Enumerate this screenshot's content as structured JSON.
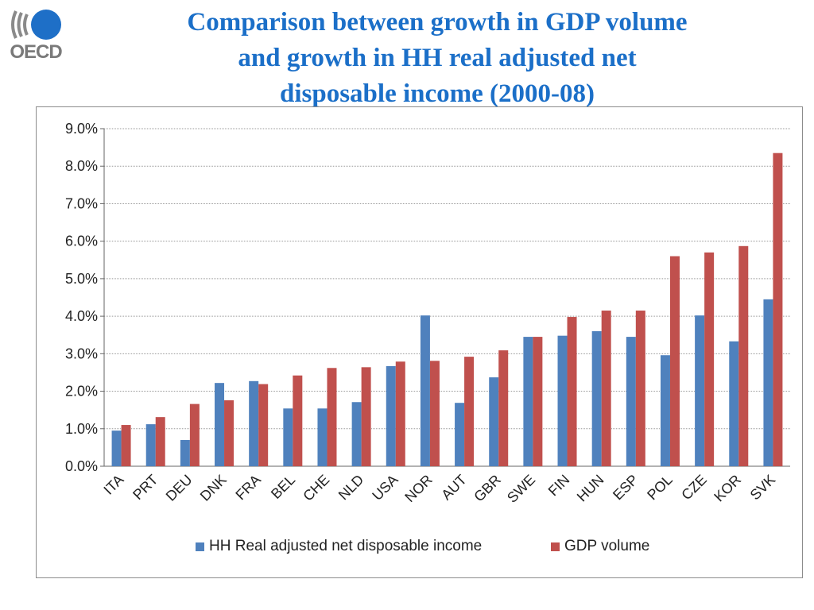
{
  "logo": {
    "text": "OECD",
    "icon": "oecd-logo-icon"
  },
  "title_lines": [
    "Comparison between growth in GDP volume",
    "and growth in HH real adjusted net",
    "disposable income (2000-08)"
  ],
  "colors": {
    "hh": "#4f81bd",
    "gdp": "#c0504d",
    "title": "#1b6fc8"
  },
  "chart_data": {
    "type": "bar",
    "title": "Comparison between growth in GDP volume and growth in HH real adjusted net disposable income (2000-08)",
    "xlabel": "",
    "ylabel": "",
    "ylim": [
      0,
      9
    ],
    "yticks": [
      "0.0%",
      "1.0%",
      "2.0%",
      "3.0%",
      "4.0%",
      "5.0%",
      "6.0%",
      "7.0%",
      "8.0%",
      "9.0%"
    ],
    "grid": true,
    "legend_position": "bottom",
    "categories": [
      "ITA",
      "PRT",
      "DEU",
      "DNK",
      "FRA",
      "BEL",
      "CHE",
      "NLD",
      "USA",
      "NOR",
      "AUT",
      "GBR",
      "SWE",
      "FIN",
      "HUN",
      "ESP",
      "POL",
      "CZE",
      "KOR",
      "SVK"
    ],
    "series": [
      {
        "name": "HH Real adjusted net disposable income",
        "values": [
          0.95,
          1.12,
          0.7,
          2.22,
          2.27,
          1.54,
          1.54,
          1.71,
          2.67,
          4.02,
          1.69,
          2.37,
          3.45,
          3.48,
          3.6,
          3.45,
          2.96,
          4.02,
          3.33,
          4.45
        ]
      },
      {
        "name": "GDP volume",
        "values": [
          1.1,
          1.31,
          1.66,
          1.76,
          2.19,
          2.42,
          2.62,
          2.64,
          2.79,
          2.81,
          2.92,
          3.09,
          3.45,
          3.98,
          4.15,
          4.15,
          5.6,
          5.7,
          5.87,
          8.35
        ]
      }
    ]
  }
}
